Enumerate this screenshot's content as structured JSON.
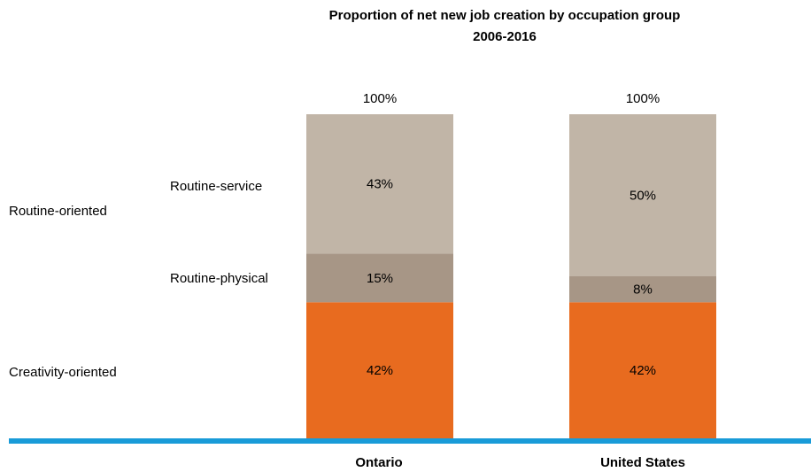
{
  "chart_data": {
    "type": "bar",
    "stacked": true,
    "title": "Proportion of net new job creation by occupation group",
    "subtitle": "2006-2016",
    "categories": [
      "Ontario",
      "United States"
    ],
    "series": [
      {
        "name": "Creativity-oriented",
        "values": [
          42,
          42
        ],
        "labels": [
          "42%",
          "42%"
        ],
        "color": "#e86b1f"
      },
      {
        "name": "Routine-physical",
        "values": [
          15,
          8
        ],
        "labels": [
          "15%",
          "8%"
        ],
        "color": "#a79686"
      },
      {
        "name": "Routine-service",
        "values": [
          43,
          50
        ],
        "labels": [
          "43%",
          "50%"
        ],
        "color": "#c1b5a7"
      }
    ],
    "totals": [
      "100%",
      "100%"
    ],
    "group_label": "Routine-oriented",
    "ylim": [
      0,
      100
    ],
    "baseline_color": "#199bd8"
  }
}
